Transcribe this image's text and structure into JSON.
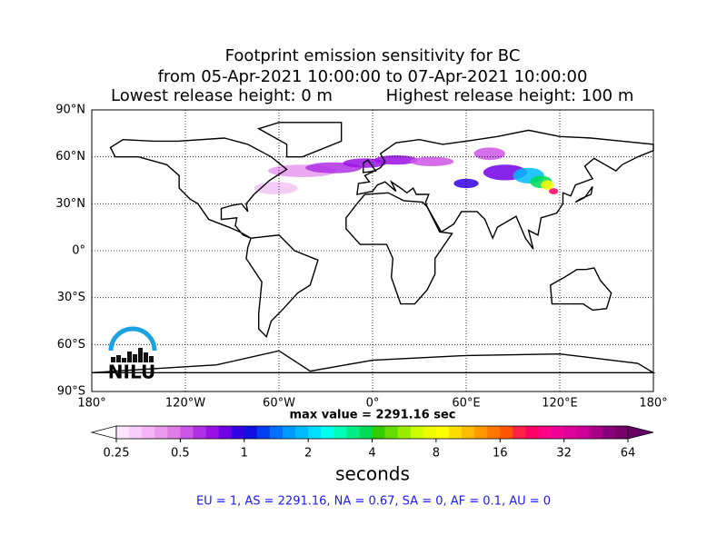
{
  "header": {
    "title_lines": [
      "Footprint emission sensitivity for BC",
      "from 05-Apr-2021 10:00:00 to 07-Apr-2021 10:00:00"
    ],
    "release_low": "Lowest release height: 0 m",
    "release_high": "Highest release height: 100 m"
  },
  "map": {
    "lonlim": [
      -180,
      180
    ],
    "latlim": [
      -90,
      90
    ],
    "lonticks": [
      {
        "value": -180,
        "label": "180°"
      },
      {
        "value": -120,
        "label": "120°W"
      },
      {
        "value": -60,
        "label": "60°W"
      },
      {
        "value": 0,
        "label": "0°"
      },
      {
        "value": 60,
        "label": "60°E"
      },
      {
        "value": 120,
        "label": "120°E"
      },
      {
        "value": 180,
        "label": "180°"
      }
    ],
    "latticks": [
      {
        "value": 90,
        "label": "90°N"
      },
      {
        "value": 60,
        "label": "60°N"
      },
      {
        "value": 30,
        "label": "30°N"
      },
      {
        "value": 0,
        "label": "0°"
      },
      {
        "value": -30,
        "label": "30°S"
      },
      {
        "value": -60,
        "label": "60°S"
      },
      {
        "value": -90,
        "label": "90°S"
      }
    ],
    "grid": true,
    "logo": "NILU",
    "max_value_text": "max value = 2291.16 sec"
  },
  "colorbar": {
    "scale": "log",
    "lim": [
      0.25,
      64
    ],
    "ticks": [
      0.25,
      0.5,
      1,
      2,
      4,
      8,
      16,
      32,
      64
    ],
    "label": "seconds",
    "colors": [
      "#fde6fd",
      "#fbcdfb",
      "#f5b4f5",
      "#eb9beb",
      "#e07ce6",
      "#cc55e6",
      "#b030e6",
      "#9a10e6",
      "#7000e6",
      "#3300e6",
      "#1010e0",
      "#0040f0",
      "#0070ff",
      "#0099ff",
      "#00bbff",
      "#00ddff",
      "#00ffee",
      "#00ffbb",
      "#00ee88",
      "#00dd55",
      "#33cc00",
      "#66dd00",
      "#99ee00",
      "#ccff00",
      "#eeff00",
      "#ffff00",
      "#ffdd00",
      "#ffbb00",
      "#ff9900",
      "#ff7700",
      "#ff5500",
      "#ff2244",
      "#ff0066",
      "#ff0088",
      "#ee0099",
      "#dd0099",
      "#cc0099",
      "#aa0088",
      "#880077",
      "#770066"
    ],
    "extend_min_color": "#ffffff",
    "extend_max_color": "#660066"
  },
  "footer": {
    "text": "EU = 1,  AS = 2291.16,  NA = 0.67,  SA = 0,  AF = 0.1,  AU = 0"
  }
}
